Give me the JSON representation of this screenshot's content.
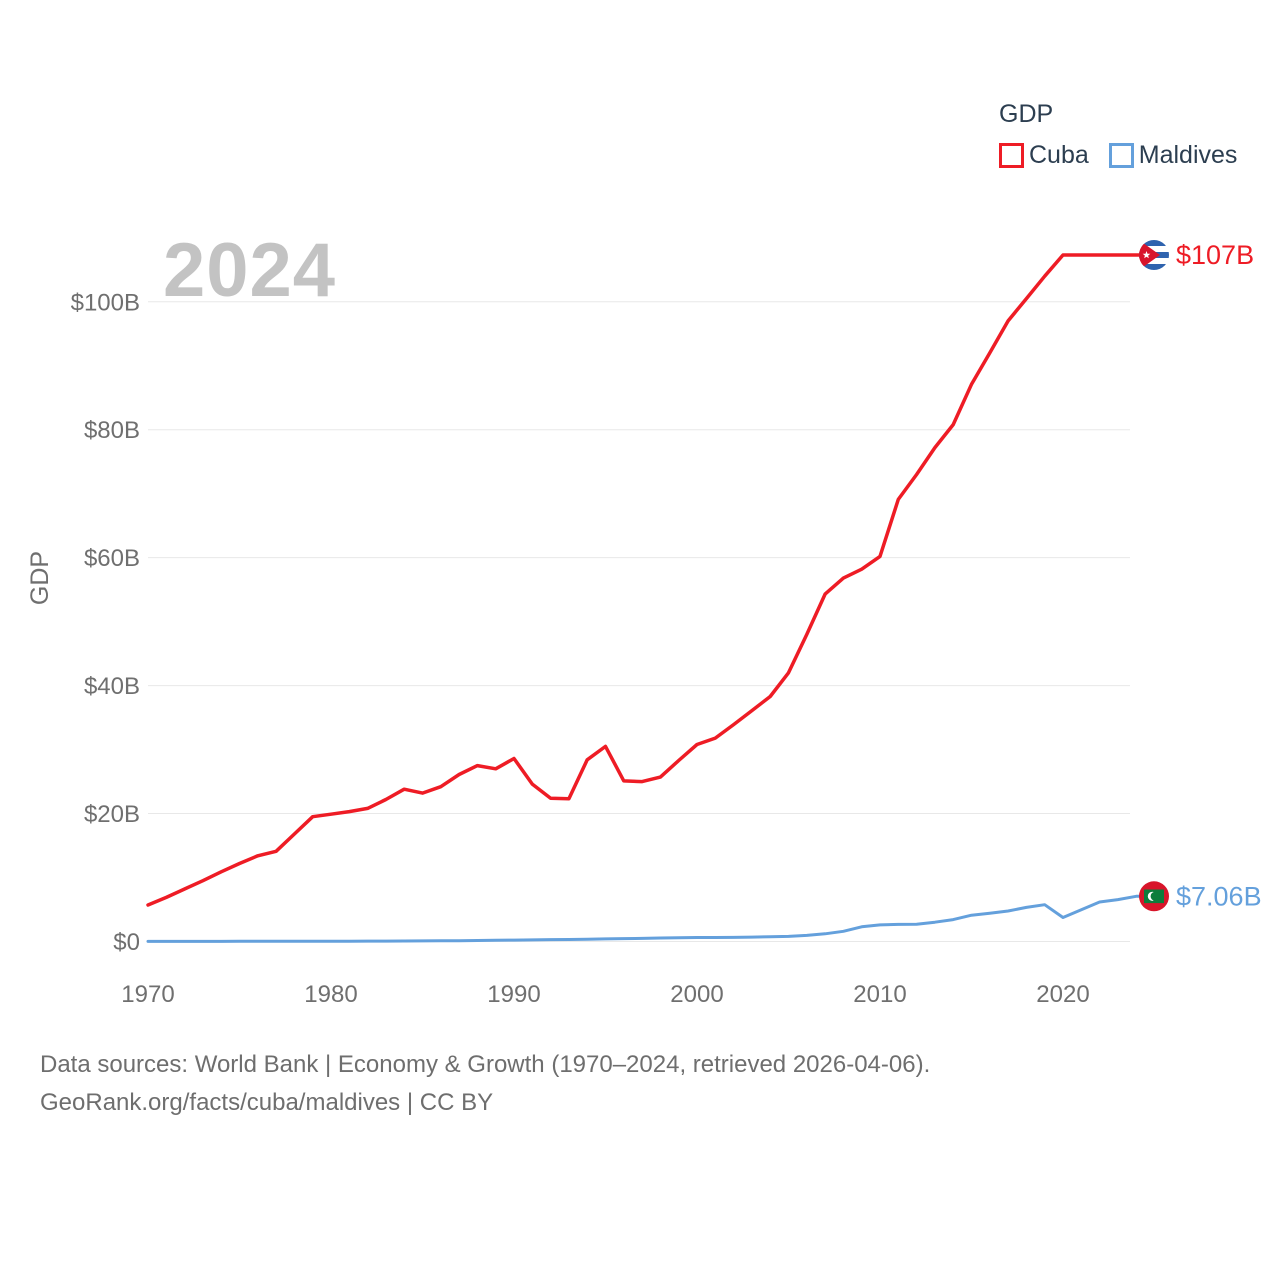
{
  "watermark": "2024",
  "legend": {
    "title": "GDP",
    "items": [
      {
        "label": "Cuba",
        "color": "#ee1c25"
      },
      {
        "label": "Maldives",
        "color": "#64a0dc"
      }
    ]
  },
  "footer": {
    "line1": "Data sources: World Bank | Economy & Growth (1970–2024, retrieved 2026-04-06).",
    "line2": "GeoRank.org/facts/cuba/maldives | CC BY"
  },
  "colors": {
    "cuba": "#ee1c25",
    "maldives": "#64a0dc",
    "axis_text": "#6f6f6f",
    "gridline": "#e8e8e8",
    "watermark": "#c3c3c3",
    "legend_text": "#2c3e50",
    "footer_text": "#6e6e6e"
  },
  "chart_data": {
    "type": "line",
    "title": "GDP",
    "ylabel": "GDP",
    "xlabel": "",
    "grid": "horizontal",
    "legend_position": "top-right",
    "xlim": [
      1970,
      2024
    ],
    "ylim": [
      0,
      112
    ],
    "x_ticks": [
      1970,
      1980,
      1990,
      2000,
      2010,
      2020
    ],
    "y_ticks": [
      {
        "value": 0,
        "label": "$0"
      },
      {
        "value": 20,
        "label": "$20B"
      },
      {
        "value": 40,
        "label": "$40B"
      },
      {
        "value": 60,
        "label": "$60B"
      },
      {
        "value": 80,
        "label": "$80B"
      },
      {
        "value": 100,
        "label": "$100B"
      }
    ],
    "x": [
      1970,
      1971,
      1972,
      1973,
      1974,
      1975,
      1976,
      1977,
      1978,
      1979,
      1980,
      1981,
      1982,
      1983,
      1984,
      1985,
      1986,
      1987,
      1988,
      1989,
      1990,
      1991,
      1992,
      1993,
      1994,
      1995,
      1996,
      1997,
      1998,
      1999,
      2000,
      2001,
      2002,
      2003,
      2004,
      2005,
      2006,
      2007,
      2008,
      2009,
      2010,
      2011,
      2012,
      2013,
      2014,
      2015,
      2016,
      2017,
      2018,
      2019,
      2020,
      2021,
      2022,
      2023,
      2024
    ],
    "series": [
      {
        "name": "Cuba",
        "color": "#ee1c25",
        "end_label": "$107B",
        "flag": "cuba-flag",
        "values": [
          5.7,
          6.9,
          8.2,
          9.5,
          10.9,
          12.2,
          13.4,
          14.1,
          16.8,
          19.5,
          19.9,
          20.3,
          20.8,
          22.2,
          23.8,
          23.2,
          24.2,
          26.1,
          27.5,
          27.0,
          28.6,
          24.6,
          22.4,
          22.3,
          28.4,
          30.5,
          25.1,
          25.0,
          25.7,
          28.3,
          30.8,
          31.8,
          33.9,
          36.1,
          38.3,
          42.0,
          48.0,
          54.3,
          56.8,
          58.2,
          60.2,
          69.1,
          73.0,
          77.2,
          80.8,
          87.1,
          92.0,
          97.0,
          100.5,
          104.0,
          107.3,
          107.3,
          107.3,
          107.3,
          107.3
        ]
      },
      {
        "name": "Maldives",
        "color": "#64a0dc",
        "end_label": "$7.06B",
        "flag": "maldives-flag",
        "values": [
          0.01,
          0.01,
          0.02,
          0.02,
          0.02,
          0.03,
          0.03,
          0.04,
          0.04,
          0.04,
          0.05,
          0.05,
          0.06,
          0.07,
          0.08,
          0.09,
          0.11,
          0.13,
          0.16,
          0.19,
          0.22,
          0.25,
          0.29,
          0.32,
          0.36,
          0.4,
          0.45,
          0.49,
          0.54,
          0.58,
          0.62,
          0.62,
          0.64,
          0.69,
          0.75,
          0.8,
          0.95,
          1.2,
          1.6,
          2.3,
          2.59,
          2.67,
          2.7,
          3.02,
          3.42,
          4.11,
          4.41,
          4.76,
          5.33,
          5.75,
          3.75,
          4.95,
          6.17,
          6.55,
          7.06
        ]
      }
    ]
  }
}
